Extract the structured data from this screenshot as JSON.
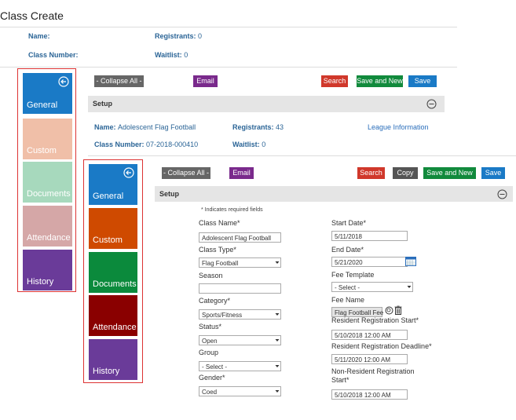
{
  "header": {
    "title": "Class Create"
  },
  "summary": {
    "name_label": "Name:",
    "registrants_label": "Registrants:",
    "registrants": "0",
    "class_number_label": "Class Number:",
    "waitlist_label": "Waitlist:",
    "waitlist": "0"
  },
  "background": {
    "nav": [
      "General",
      "Custom",
      "Documents",
      "Attendance",
      "History"
    ],
    "toolbar": [
      "- Collapse All -",
      "Email",
      "Search",
      "Save and New",
      "Save"
    ],
    "section": "Setup"
  },
  "detail": {
    "name_label": "Name:",
    "name": "Adolescent Flag Football",
    "registrants_label": "Registrants:",
    "registrants": "43",
    "link": "League Information",
    "class_number_label": "Class Number:",
    "class_number": "07-2018-000410",
    "waitlist_label": "Waitlist:",
    "waitlist": "0"
  },
  "foreground": {
    "nav": [
      "General",
      "Custom",
      "Documents",
      "Attendance",
      "History"
    ],
    "toolbar": [
      "- Collapse All -",
      "Email",
      "Search",
      "Copy",
      "Save and New",
      "Save"
    ],
    "section": "Setup",
    "note": "* Indicates required fields",
    "left_fields": [
      {
        "label": "Class Name*",
        "value": "Adolescent Flag Football"
      },
      {
        "label": "Class Type*",
        "value": "Flag Football"
      },
      {
        "label": "Season"
      },
      {
        "label": "Category*",
        "value": "Sports/Fitness"
      },
      {
        "label": "Status*",
        "value": "Open"
      },
      {
        "label": "Group",
        "value": "- Select -"
      },
      {
        "label": "Gender*",
        "value": "Coed"
      }
    ],
    "right_fields": [
      {
        "label": "Start Date*",
        "value": "5/11/2018"
      },
      {
        "label": "End Date*",
        "value": "5/21/2020"
      },
      {
        "label": "Fee Template",
        "value": "- Select -"
      },
      {
        "label": "Fee Name",
        "value": "Flag Football Fee"
      },
      {
        "label": "Resident Registration Start*",
        "value": "5/10/2018 12:00 AM"
      },
      {
        "label": "Resident Registration Deadline*",
        "value": "5/11/2020 12:00 AM"
      },
      {
        "label": "Non-Resident Registration Start*",
        "value": "5/10/2018 12:00 AM"
      }
    ]
  }
}
